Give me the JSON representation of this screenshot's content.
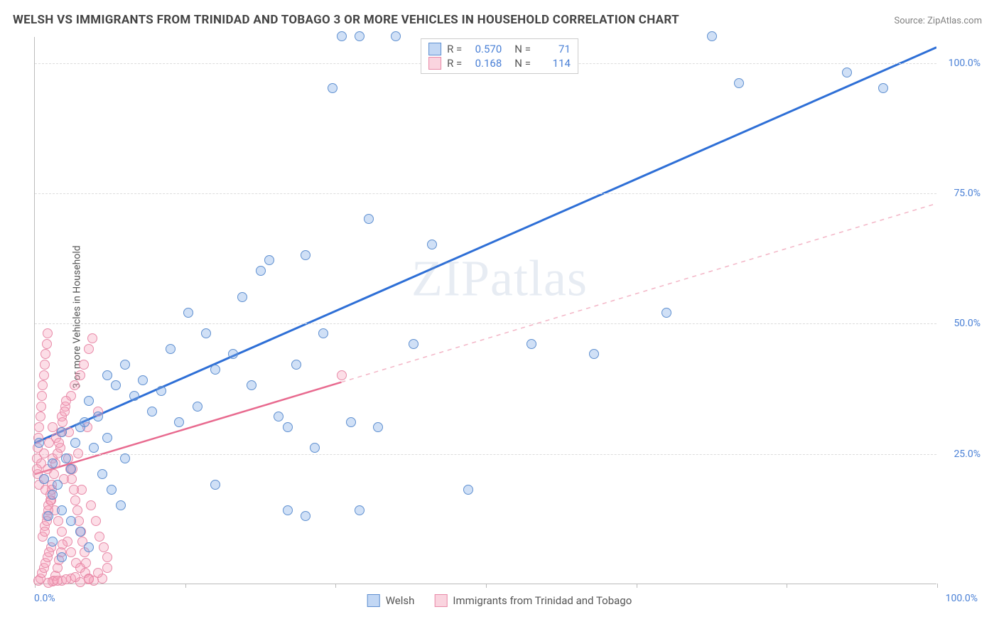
{
  "title": "WELSH VS IMMIGRANTS FROM TRINIDAD AND TOBAGO 3 OR MORE VEHICLES IN HOUSEHOLD CORRELATION CHART",
  "source": "Source: ZipAtlas.com",
  "y_axis_label": "3 or more Vehicles in Household",
  "watermark": "ZIPatlas",
  "chart": {
    "type": "scatter",
    "xlim": [
      0,
      100
    ],
    "ylim": [
      0,
      105
    ],
    "x_tick_positions": [
      0,
      16.67,
      33.33,
      50,
      66.67,
      83.33,
      100
    ],
    "x_tick_labels": {
      "min": "0.0%",
      "max": "100.0%"
    },
    "y_gridlines": [
      25,
      50,
      75,
      100
    ],
    "y_tick_labels": [
      "25.0%",
      "50.0%",
      "75.0%",
      "100.0%"
    ],
    "grid_color": "#dcdcdc",
    "axis_color": "#bbbbbb",
    "background_color": "#ffffff",
    "label_color": "#4a80d6"
  },
  "series": {
    "welsh": {
      "label": "Welsh",
      "color_fill": "rgba(120,167,230,0.35)",
      "color_stroke": "#5e8fd0",
      "trend_color": "#2e6fd6",
      "trend_dash_color": "#9bbdf0",
      "trend": {
        "x1": 0,
        "y1": 27,
        "x2": 100,
        "y2": 103,
        "solid_until_x": 100
      },
      "R": "0.570",
      "N": "71",
      "points": [
        [
          0.5,
          27
        ],
        [
          2,
          23
        ],
        [
          3,
          29
        ],
        [
          4,
          22
        ],
        [
          5,
          30
        ],
        [
          6,
          35
        ],
        [
          7,
          32
        ],
        [
          8,
          40
        ],
        [
          8,
          28
        ],
        [
          9,
          38
        ],
        [
          10,
          42
        ],
        [
          10,
          24
        ],
        [
          11,
          36
        ],
        [
          12,
          39
        ],
        [
          13,
          33
        ],
        [
          14,
          37
        ],
        [
          15,
          45
        ],
        [
          16,
          31
        ],
        [
          17,
          52
        ],
        [
          18,
          34
        ],
        [
          19,
          48
        ],
        [
          20,
          41
        ],
        [
          20,
          19
        ],
        [
          22,
          44
        ],
        [
          23,
          55
        ],
        [
          24,
          38
        ],
        [
          25,
          60
        ],
        [
          26,
          62
        ],
        [
          27,
          32
        ],
        [
          28,
          30
        ],
        [
          28,
          14
        ],
        [
          29,
          42
        ],
        [
          30,
          63
        ],
        [
          30,
          13
        ],
        [
          31,
          26
        ],
        [
          32,
          48
        ],
        [
          33,
          95
        ],
        [
          34,
          105
        ],
        [
          35,
          31
        ],
        [
          36,
          105
        ],
        [
          36,
          14
        ],
        [
          37,
          70
        ],
        [
          38,
          30
        ],
        [
          40,
          105
        ],
        [
          42,
          46
        ],
        [
          44,
          65
        ],
        [
          48,
          18
        ],
        [
          55,
          46
        ],
        [
          62,
          44
        ],
        [
          70,
          52
        ],
        [
          75,
          105
        ],
        [
          78,
          96
        ],
        [
          90,
          98
        ],
        [
          94,
          95
        ],
        [
          1,
          20
        ],
        [
          2,
          17
        ],
        [
          3,
          14
        ],
        [
          4,
          12
        ],
        [
          5,
          10
        ],
        [
          6,
          7
        ],
        [
          2,
          8
        ],
        [
          3,
          5
        ],
        [
          1.5,
          13
        ],
        [
          2.5,
          19
        ],
        [
          3.5,
          24
        ],
        [
          4.5,
          27
        ],
        [
          5.5,
          31
        ],
        [
          6.5,
          26
        ],
        [
          7.5,
          21
        ],
        [
          8.5,
          18
        ],
        [
          9.5,
          15
        ]
      ]
    },
    "trinidad": {
      "label": "Immigrants from Trinidad and Tobago",
      "color_fill": "rgba(245,160,185,0.35)",
      "color_stroke": "#e88aa8",
      "trend_color": "#e86a8f",
      "trend_dash_color": "#f3b5c6",
      "trend": {
        "x1": 0,
        "y1": 21,
        "x2": 100,
        "y2": 73,
        "solid_until_x": 34
      },
      "R": "0.168",
      "N": "114",
      "points": [
        [
          0.3,
          21
        ],
        [
          0.5,
          19
        ],
        [
          0.7,
          23
        ],
        [
          1,
          20
        ],
        [
          1,
          25
        ],
        [
          1.2,
          18
        ],
        [
          1.4,
          22
        ],
        [
          1.6,
          27
        ],
        [
          1.8,
          16
        ],
        [
          2,
          24
        ],
        [
          2,
          30
        ],
        [
          2.2,
          14
        ],
        [
          2.4,
          28
        ],
        [
          2.6,
          12
        ],
        [
          2.8,
          26
        ],
        [
          3,
          32
        ],
        [
          3,
          10
        ],
        [
          3.2,
          20
        ],
        [
          3.4,
          34
        ],
        [
          3.6,
          8
        ],
        [
          3.8,
          29
        ],
        [
          4,
          36
        ],
        [
          4,
          6
        ],
        [
          4.2,
          22
        ],
        [
          4.4,
          38
        ],
        [
          4.6,
          4
        ],
        [
          4.8,
          25
        ],
        [
          5,
          40
        ],
        [
          5,
          3
        ],
        [
          5.2,
          18
        ],
        [
          5.4,
          42
        ],
        [
          5.6,
          2
        ],
        [
          5.8,
          30
        ],
        [
          6,
          45
        ],
        [
          6,
          1
        ],
        [
          6.2,
          15
        ],
        [
          6.4,
          47
        ],
        [
          6.8,
          12
        ],
        [
          7,
          33
        ],
        [
          7.2,
          9
        ],
        [
          7.6,
          7
        ],
        [
          8,
          5
        ],
        [
          1.1,
          11
        ],
        [
          1.3,
          13
        ],
        [
          1.5,
          15
        ],
        [
          1.7,
          17
        ],
        [
          1.9,
          19
        ],
        [
          2.1,
          21
        ],
        [
          2.3,
          23
        ],
        [
          2.5,
          25
        ],
        [
          2.7,
          27
        ],
        [
          2.9,
          29
        ],
        [
          3.1,
          31
        ],
        [
          3.3,
          33
        ],
        [
          3.5,
          35
        ],
        [
          3.7,
          24
        ],
        [
          3.9,
          22
        ],
        [
          4.1,
          20
        ],
        [
          4.3,
          18
        ],
        [
          4.5,
          16
        ],
        [
          4.7,
          14
        ],
        [
          4.9,
          12
        ],
        [
          5.1,
          10
        ],
        [
          5.3,
          8
        ],
        [
          5.5,
          6
        ],
        [
          5.7,
          4
        ],
        [
          0.4,
          0.5
        ],
        [
          0.6,
          1
        ],
        [
          0.8,
          2
        ],
        [
          1.0,
          3
        ],
        [
          1.2,
          4
        ],
        [
          1.4,
          5
        ],
        [
          1.6,
          6
        ],
        [
          1.8,
          7
        ],
        [
          0.9,
          9
        ],
        [
          1.1,
          10
        ],
        [
          1.3,
          12
        ],
        [
          1.5,
          14
        ],
        [
          1.7,
          16
        ],
        [
          1.9,
          18
        ],
        [
          2.1,
          0.5
        ],
        [
          2.3,
          1.5
        ],
        [
          2.5,
          3
        ],
        [
          2.7,
          4.5
        ],
        [
          2.9,
          6
        ],
        [
          3.1,
          7.5
        ],
        [
          34,
          40
        ],
        [
          0.2,
          22
        ],
        [
          0.2,
          24
        ],
        [
          0.3,
          26
        ],
        [
          0.4,
          28
        ],
        [
          0.5,
          30
        ],
        [
          0.6,
          32
        ],
        [
          0.7,
          34
        ],
        [
          0.8,
          36
        ],
        [
          0.9,
          38
        ],
        [
          1.0,
          40
        ],
        [
          1.1,
          42
        ],
        [
          1.2,
          44
        ],
        [
          1.3,
          46
        ],
        [
          1.4,
          48
        ],
        [
          6.5,
          0.5
        ],
        [
          7.5,
          1
        ],
        [
          3.0,
          0.5
        ],
        [
          4.0,
          1
        ],
        [
          5.0,
          0.3
        ],
        [
          6.0,
          0.8
        ],
        [
          7.0,
          2
        ],
        [
          8.0,
          3
        ],
        [
          1.5,
          0.2
        ],
        [
          2.0,
          0.4
        ],
        [
          2.5,
          0.6
        ],
        [
          3.5,
          0.8
        ],
        [
          4.5,
          1.2
        ]
      ]
    }
  },
  "stats_box": {
    "rows": [
      {
        "swatch": "blue",
        "r_label": "R =",
        "r_val": "0.570",
        "n_label": "N =",
        "n_val": "71"
      },
      {
        "swatch": "pink",
        "r_label": "R =",
        "r_val": "0.168",
        "n_label": "N =",
        "n_val": "114"
      }
    ]
  },
  "legend": {
    "items": [
      {
        "swatch": "blue",
        "label": "Welsh"
      },
      {
        "swatch": "pink",
        "label": "Immigrants from Trinidad and Tobago"
      }
    ]
  }
}
